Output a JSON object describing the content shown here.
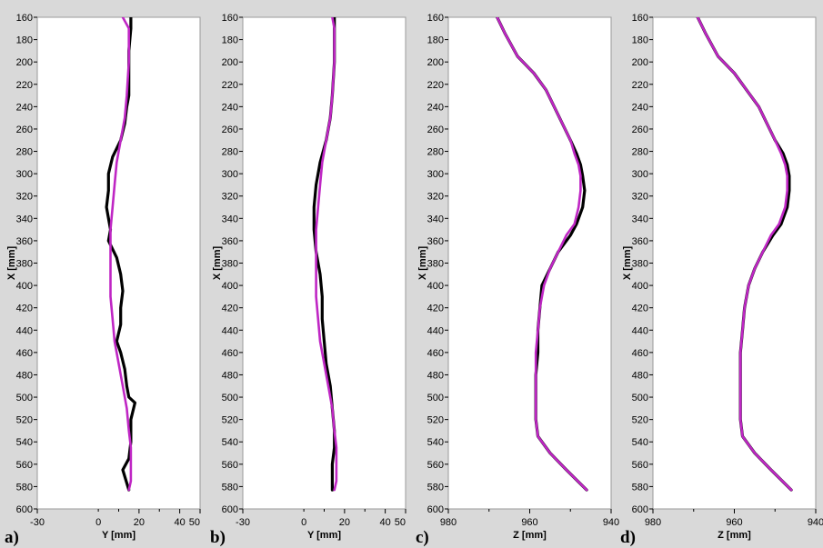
{
  "colors": {
    "background": "#d9d9d9",
    "plot_area": "#ffffff",
    "measured": "#000000",
    "model": "#bf26c4"
  },
  "chart_data": [
    {
      "type": "line",
      "panel_label": "a)",
      "xlabel": "Y [mm]",
      "ylabel": "X [mm]",
      "xlim": [
        -30,
        50
      ],
      "x_reversed": false,
      "ylim": [
        160,
        600
      ],
      "y_inverted": true,
      "x_ticks": [
        "-30",
        "20",
        "40",
        "50"
      ],
      "y_ticks": [
        160,
        180,
        200,
        220,
        240,
        260,
        280,
        300,
        320,
        340,
        360,
        380,
        400,
        420,
        440,
        460,
        480,
        500,
        520,
        540,
        560,
        580,
        600
      ],
      "x_tick_values": [
        -30,
        20,
        40,
        50
      ],
      "extra_minor_x_ticks": [
        0,
        10,
        30
      ],
      "extra_x_labels": [
        {
          "text": "0",
          "value": 0
        }
      ],
      "grid": false,
      "series": [
        {
          "color": "measured",
          "x": [
            16,
            16,
            15,
            15,
            15,
            14,
            13,
            11,
            7,
            5,
            5,
            4,
            5,
            6,
            5,
            9,
            11,
            12,
            11,
            11,
            9,
            11,
            13,
            14,
            15,
            18,
            16,
            16,
            15,
            12,
            15
          ],
          "y": [
            160,
            170,
            190,
            210,
            230,
            240,
            255,
            270,
            285,
            300,
            315,
            330,
            340,
            350,
            360,
            375,
            390,
            405,
            420,
            435,
            450,
            460,
            475,
            490,
            500,
            505,
            520,
            540,
            555,
            565,
            583
          ]
        },
        {
          "color": "model",
          "x": [
            12,
            15,
            15,
            14,
            13,
            11,
            9,
            8,
            7,
            6,
            6,
            6,
            6,
            7,
            8,
            10,
            12,
            14,
            15,
            16,
            16,
            16,
            15
          ],
          "y": [
            160,
            170,
            200,
            230,
            250,
            270,
            290,
            310,
            330,
            350,
            370,
            390,
            410,
            430,
            450,
            470,
            490,
            510,
            530,
            545,
            560,
            575,
            583
          ]
        }
      ]
    },
    {
      "type": "line",
      "panel_label": "b)",
      "xlabel": "Y [mm]",
      "ylabel": "X [mm]",
      "xlim": [
        -30,
        50
      ],
      "x_reversed": false,
      "ylim": [
        160,
        600
      ],
      "y_inverted": true,
      "x_ticks": [
        "-30",
        "20",
        "40",
        "50"
      ],
      "y_ticks": [
        160,
        180,
        200,
        220,
        240,
        260,
        280,
        300,
        320,
        340,
        360,
        380,
        400,
        420,
        440,
        460,
        480,
        500,
        520,
        540,
        560,
        580,
        600
      ],
      "x_tick_values": [
        -30,
        20,
        40,
        50
      ],
      "extra_minor_x_ticks": [
        0,
        10,
        30
      ],
      "extra_x_labels": [
        {
          "text": "0",
          "value": 0
        }
      ],
      "grid": false,
      "series": [
        {
          "color": "measured",
          "x": [
            15,
            15,
            15,
            14,
            13,
            11,
            8,
            6,
            5,
            5,
            6,
            8,
            9,
            9,
            10,
            11,
            13,
            14,
            15,
            15,
            14,
            14,
            14
          ],
          "y": [
            160,
            170,
            200,
            230,
            250,
            270,
            290,
            310,
            330,
            350,
            370,
            390,
            410,
            430,
            450,
            470,
            490,
            510,
            530,
            545,
            560,
            575,
            583
          ]
        },
        {
          "color": "model",
          "x": [
            14,
            15,
            15,
            14,
            13,
            11,
            9,
            8,
            7,
            6,
            6,
            6,
            6,
            7,
            8,
            10,
            12,
            14,
            15,
            16,
            16,
            16,
            15
          ],
          "y": [
            160,
            170,
            200,
            230,
            250,
            270,
            290,
            310,
            330,
            350,
            370,
            390,
            410,
            430,
            450,
            470,
            490,
            510,
            530,
            545,
            560,
            575,
            583
          ]
        }
      ]
    },
    {
      "type": "line",
      "panel_label": "c)",
      "xlabel": "Z [mm]",
      "ylabel": "X [mm]",
      "xlim": [
        940,
        980
      ],
      "x_reversed": true,
      "ylim": [
        160,
        600
      ],
      "y_inverted": true,
      "x_ticks": [
        "980",
        "960",
        "940"
      ],
      "y_ticks": [
        160,
        180,
        200,
        220,
        240,
        260,
        280,
        300,
        320,
        340,
        360,
        380,
        400,
        420,
        440,
        460,
        480,
        500,
        520,
        540,
        560,
        580,
        600
      ],
      "x_tick_values": [
        980,
        960,
        940
      ],
      "extra_minor_x_ticks": [
        970,
        950
      ],
      "extra_x_labels": [],
      "grid": false,
      "series": [
        {
          "color": "measured",
          "x": [
            968,
            966,
            963,
            959,
            956,
            954,
            952,
            950,
            948.5,
            947.5,
            947,
            946.5,
            947,
            948.5,
            950,
            953,
            955,
            957,
            957.5,
            958,
            958,
            958.5,
            958.5,
            958.5,
            958,
            955,
            951,
            946
          ],
          "y": [
            160,
            175,
            195,
            210,
            225,
            240,
            255,
            270,
            282,
            292,
            302,
            315,
            330,
            345,
            355,
            370,
            385,
            400,
            420,
            440,
            460,
            480,
            500,
            520,
            535,
            550,
            565,
            583
          ]
        },
        {
          "color": "model",
          "x": [
            968,
            966,
            963,
            959,
            956,
            954,
            952,
            950,
            949,
            948,
            947.5,
            947.5,
            948,
            949,
            951,
            953,
            955,
            956.5,
            957.5,
            958,
            958.5,
            958.5,
            958.5,
            958.5,
            958,
            955,
            951,
            946
          ],
          "y": [
            160,
            175,
            195,
            210,
            225,
            240,
            255,
            270,
            282,
            292,
            302,
            315,
            330,
            345,
            355,
            370,
            385,
            400,
            420,
            440,
            460,
            480,
            500,
            520,
            535,
            550,
            565,
            583
          ]
        }
      ]
    },
    {
      "type": "line",
      "panel_label": "d)",
      "xlabel": "Z [mm]",
      "ylabel": "X [mm]",
      "xlim": [
        940,
        980
      ],
      "x_reversed": true,
      "ylim": [
        160,
        600
      ],
      "y_inverted": true,
      "x_ticks": [
        "980",
        "960",
        "940"
      ],
      "y_ticks": [
        160,
        180,
        200,
        220,
        240,
        260,
        280,
        300,
        320,
        340,
        360,
        380,
        400,
        420,
        440,
        460,
        480,
        500,
        520,
        540,
        560,
        580,
        600
      ],
      "x_tick_values": [
        980,
        960,
        940
      ],
      "extra_minor_x_ticks": [
        970,
        950
      ],
      "extra_x_labels": [],
      "grid": false,
      "series": [
        {
          "color": "measured",
          "x": [
            969,
            967,
            964,
            960,
            957,
            954,
            952,
            950,
            948,
            947,
            946.5,
            946.5,
            947,
            948.5,
            950.5,
            953,
            955,
            956.5,
            957.5,
            958,
            958.5,
            958.5,
            958.5,
            958.5,
            958,
            955,
            951,
            946
          ],
          "y": [
            160,
            175,
            195,
            210,
            225,
            240,
            255,
            270,
            282,
            292,
            302,
            315,
            330,
            345,
            355,
            370,
            385,
            400,
            420,
            440,
            460,
            480,
            500,
            520,
            535,
            550,
            565,
            583
          ]
        },
        {
          "color": "model",
          "x": [
            969,
            967,
            964,
            960,
            957,
            954,
            952,
            950,
            948.5,
            947.5,
            947,
            947,
            947.5,
            949,
            951,
            953,
            955,
            956.5,
            957.5,
            958,
            958.5,
            958.5,
            958.5,
            958.5,
            958,
            955,
            951,
            946
          ],
          "y": [
            160,
            175,
            195,
            210,
            225,
            240,
            255,
            270,
            282,
            292,
            302,
            315,
            330,
            345,
            355,
            370,
            385,
            400,
            420,
            440,
            460,
            480,
            500,
            520,
            535,
            550,
            565,
            583
          ]
        }
      ]
    }
  ]
}
